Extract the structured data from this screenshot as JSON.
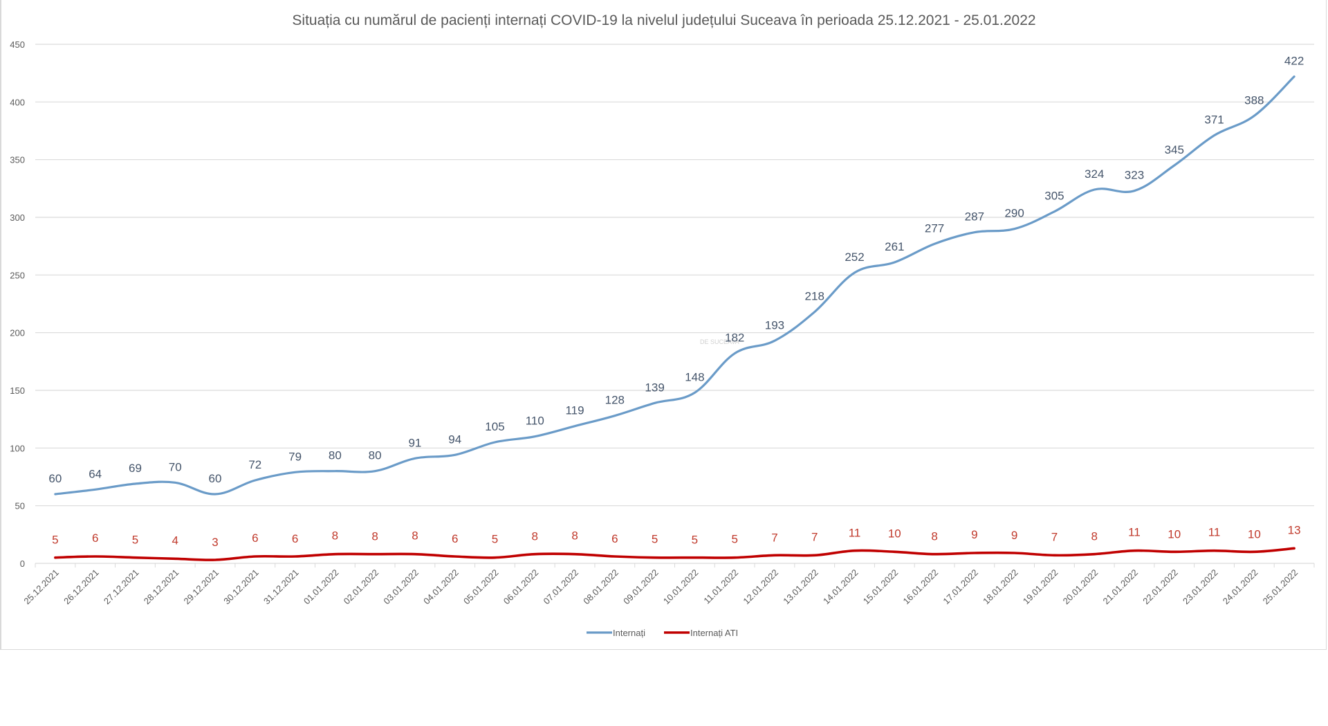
{
  "chart_data": {
    "type": "line",
    "title": "Situația cu numărul de pacienți internați COVID-19 la nivelul județului Suceava în perioada 25.12.2021 - 25.01.2022",
    "xlabel": "",
    "ylabel": "",
    "ylim": [
      0,
      450
    ],
    "yticks": [
      0,
      50,
      100,
      150,
      200,
      250,
      300,
      350,
      400,
      450
    ],
    "grid": true,
    "legend_position": "bottom",
    "watermark": "DE SUCEAVA",
    "categories": [
      "25.12.2021",
      "26.12.2021",
      "27.12.2021",
      "28.12.2021",
      "29.12.2021",
      "30.12.2021",
      "31.12.2021",
      "01.01.2022",
      "02.01.2022",
      "03.01.2022",
      "04.01.2022",
      "05.01.2022",
      "06.01.2022",
      "07.01.2022",
      "08.01.2022",
      "09.01.2022",
      "10.01.2022",
      "11.01.2022",
      "12.01.2022",
      "13.01.2022",
      "14.01.2022",
      "15.01.2022",
      "16.01.2022",
      "17.01.2022",
      "18.01.2022",
      "19.01.2022",
      "20.01.2022",
      "21.01.2022",
      "22.01.2022",
      "23.01.2022",
      "24.01.2022",
      "25.01.2022"
    ],
    "series": [
      {
        "name": "Internați",
        "color": "#6a9bc8",
        "label_color": "#44546a",
        "values": [
          60,
          64,
          69,
          70,
          60,
          72,
          79,
          80,
          80,
          91,
          94,
          105,
          110,
          119,
          128,
          139,
          148,
          182,
          193,
          218,
          252,
          261,
          277,
          287,
          290,
          305,
          324,
          323,
          345,
          371,
          388,
          422
        ]
      },
      {
        "name": "Internați ATI",
        "color": "#c00000",
        "label_color": "#c0392b",
        "values": [
          5,
          6,
          5,
          4,
          3,
          6,
          6,
          8,
          8,
          8,
          6,
          5,
          8,
          8,
          6,
          5,
          5,
          5,
          7,
          7,
          11,
          10,
          8,
          9,
          9,
          7,
          8,
          11,
          10,
          11,
          10,
          13
        ]
      }
    ]
  }
}
